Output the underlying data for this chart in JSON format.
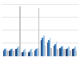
{
  "n_groups": 12,
  "abc": [
    4,
    4,
    5,
    3,
    3,
    4,
    12,
    10,
    8,
    6,
    5,
    5
  ],
  "cbs": [
    5,
    5,
    6,
    4,
    4,
    5,
    14,
    12,
    9,
    7,
    6,
    6
  ],
  "nbc": [
    6,
    6,
    7,
    5,
    5,
    6,
    16,
    14,
    11,
    8,
    7,
    7
  ],
  "fox": [
    4,
    4,
    38,
    3,
    3,
    37,
    8,
    6,
    5,
    5,
    4,
    4
  ],
  "colors": [
    "#1f3864",
    "#2e75b6",
    "#9dc3e6",
    "#c0c0c0"
  ],
  "background": "#ffffff",
  "ylim": [
    0,
    42
  ],
  "gridlines": [
    10,
    20,
    30,
    40
  ]
}
